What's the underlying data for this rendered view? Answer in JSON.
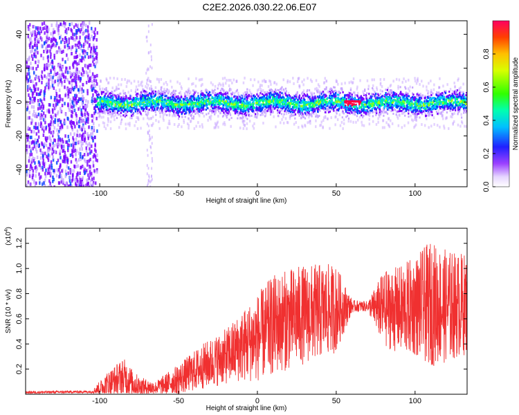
{
  "title": "C2E2.2026.030.22.06.E07",
  "chart_data": [
    {
      "type": "heatmap",
      "xlabel": "Height of straight line (km)",
      "ylabel": "Frequency (Hz)",
      "xlim": [
        -147,
        133
      ],
      "ylim": [
        -50,
        48
      ],
      "xticks": [
        -100,
        -50,
        0,
        50,
        100
      ],
      "yticks": [
        -40,
        -20,
        0,
        20,
        40
      ],
      "colorbar": {
        "label": "Normalized spectral amplitude",
        "range": [
          0,
          1
        ],
        "ticks": [
          0.0,
          0.2,
          0.4,
          0.6,
          0.8
        ],
        "tick_labels": [
          "0.0",
          "0.2",
          "0.4",
          "0.6",
          "0.8"
        ]
      },
      "colormap": [
        "#ffffff",
        "#c7a6ff",
        "#7b00ff",
        "#0040ff",
        "#00c8ff",
        "#00ff80",
        "#aaff00",
        "#ffd200",
        "#ff6000",
        "#ff0040"
      ],
      "regions": [
        {
          "x_range": [
            -147,
            -102
          ],
          "freq_range": [
            -50,
            48
          ],
          "amplitude": 0.15,
          "description": "broadband noise"
        },
        {
          "x_range": [
            -70,
            -68
          ],
          "freq_range": [
            -50,
            48
          ],
          "amplitude": 0.05
        },
        {
          "x_range": [
            -102,
            133
          ],
          "freq_center": 0,
          "freq_halfwidth": 8,
          "amplitude_peak": 0.6
        },
        {
          "x_range": [
            55,
            65
          ],
          "freq_center": 0,
          "amplitude_peak": 1.0
        }
      ]
    },
    {
      "type": "line",
      "xlabel": "Height of straight line (km)",
      "ylabel": "SNR (10 * v/v)",
      "y_multiplier_label": "(x10",
      "y_multiplier_exp": "4",
      "y_multiplier_close": ")",
      "xlim": [
        -147,
        133
      ],
      "ylim": [
        0,
        1.32
      ],
      "xticks": [
        -100,
        -50,
        0,
        50,
        100
      ],
      "yticks": [
        0.2,
        0.4,
        0.6,
        0.8,
        1.0,
        1.2
      ],
      "color": "#f03030",
      "envelope": {
        "x": [
          -147,
          -105,
          -95,
          -85,
          -75,
          -65,
          -50,
          -35,
          -20,
          -10,
          0,
          10,
          25,
          40,
          50,
          60,
          70,
          80,
          90,
          100,
          110,
          120,
          133
        ],
        "mean": [
          0.015,
          0.02,
          0.08,
          0.14,
          0.06,
          0.05,
          0.12,
          0.22,
          0.3,
          0.38,
          0.45,
          0.55,
          0.62,
          0.66,
          0.68,
          0.7,
          0.7,
          0.68,
          0.67,
          0.7,
          0.72,
          0.7,
          0.72
        ],
        "spread": [
          0.01,
          0.01,
          0.1,
          0.15,
          0.08,
          0.05,
          0.12,
          0.18,
          0.22,
          0.28,
          0.35,
          0.4,
          0.4,
          0.38,
          0.35,
          0.05,
          0.04,
          0.3,
          0.35,
          0.4,
          0.5,
          0.45,
          0.4
        ]
      }
    }
  ]
}
